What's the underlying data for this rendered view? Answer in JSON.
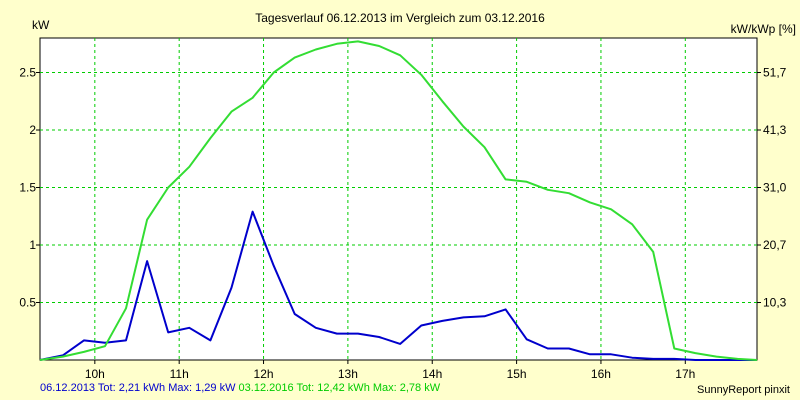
{
  "chart_data": {
    "type": "line",
    "title": "Tagesverlauf 06.12.2013 im Vergleich zum 03.12.2016",
    "ylabel_left": "kW",
    "ylabel_right": "kW/kWp [%]",
    "xlim": [
      9.35,
      17.85
    ],
    "ylim": [
      0,
      2.8
    ],
    "grid": true,
    "x_ticks": [
      {
        "value": 10,
        "label": "10h"
      },
      {
        "value": 11,
        "label": "11h"
      },
      {
        "value": 12,
        "label": "12h"
      },
      {
        "value": 13,
        "label": "13h"
      },
      {
        "value": 14,
        "label": "14h"
      },
      {
        "value": 15,
        "label": "15h"
      },
      {
        "value": 16,
        "label": "16h"
      },
      {
        "value": 17,
        "label": "17h"
      }
    ],
    "y_ticks_left": [
      {
        "value": 0.5,
        "label": "0.5"
      },
      {
        "value": 1,
        "label": "1"
      },
      {
        "value": 1.5,
        "label": "1.5"
      },
      {
        "value": 2,
        "label": "2"
      },
      {
        "value": 2.5,
        "label": "2.5"
      }
    ],
    "y_ticks_right": [
      {
        "value": 0.5,
        "label": "10,3"
      },
      {
        "value": 1,
        "label": "20,7"
      },
      {
        "value": 1.5,
        "label": "31,0"
      },
      {
        "value": 2,
        "label": "41,3"
      },
      {
        "value": 2.5,
        "label": "51,7"
      }
    ],
    "series": [
      {
        "name": "06.12.2013",
        "color": "#0000cc",
        "x": [
          9.35,
          9.62,
          9.87,
          10.12,
          10.37,
          10.62,
          10.87,
          11.12,
          11.37,
          11.62,
          11.87,
          12.12,
          12.37,
          12.62,
          12.87,
          13.12,
          13.37,
          13.62,
          13.87,
          14.12,
          14.37,
          14.62,
          14.87,
          15.12,
          15.37,
          15.62,
          15.87,
          16.12,
          16.37,
          16.62,
          16.87,
          17.12,
          17.37,
          17.62,
          17.85
        ],
        "values": [
          0.0,
          0.04,
          0.17,
          0.15,
          0.17,
          0.86,
          0.24,
          0.28,
          0.17,
          0.63,
          1.29,
          0.82,
          0.4,
          0.28,
          0.23,
          0.23,
          0.2,
          0.14,
          0.3,
          0.34,
          0.37,
          0.38,
          0.44,
          0.18,
          0.1,
          0.1,
          0.05,
          0.05,
          0.02,
          0.01,
          0.01,
          0.0,
          0.0,
          0.0,
          0.0
        ]
      },
      {
        "name": "03.12.2016",
        "color": "#33dd33",
        "x": [
          9.35,
          9.62,
          9.87,
          10.12,
          10.37,
          10.62,
          10.87,
          11.12,
          11.37,
          11.62,
          11.87,
          12.12,
          12.37,
          12.62,
          12.87,
          13.12,
          13.37,
          13.62,
          13.87,
          14.12,
          14.37,
          14.62,
          14.87,
          15.12,
          15.37,
          15.62,
          15.87,
          16.12,
          16.37,
          16.62,
          16.87,
          17.12,
          17.37,
          17.62,
          17.85
        ],
        "values": [
          0.0,
          0.03,
          0.07,
          0.12,
          0.45,
          1.22,
          1.5,
          1.68,
          1.93,
          2.16,
          2.28,
          2.5,
          2.63,
          2.7,
          2.75,
          2.77,
          2.73,
          2.65,
          2.48,
          2.25,
          2.03,
          1.85,
          1.57,
          1.55,
          1.48,
          1.45,
          1.37,
          1.31,
          1.18,
          0.94,
          0.1,
          0.06,
          0.03,
          0.01,
          0.0
        ]
      }
    ],
    "footer": {
      "series1": "06.12.2013 Tot: 2,21 kWh Max: 1,29 kW",
      "series2": "03.12.2016 Tot: 12,42 kWh Max: 2,78 kW",
      "brand": "SunnyReport pinxit"
    }
  }
}
